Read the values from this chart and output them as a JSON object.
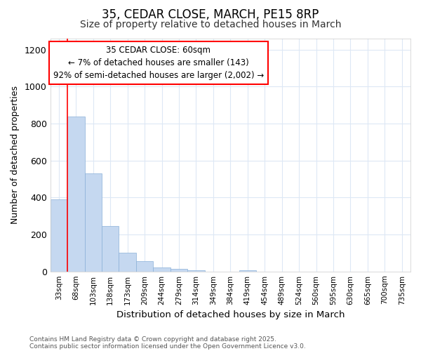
{
  "title1": "35, CEDAR CLOSE, MARCH, PE15 8RP",
  "title2": "Size of property relative to detached houses in March",
  "xlabel": "Distribution of detached houses by size in March",
  "ylabel": "Number of detached properties",
  "categories": [
    "33sqm",
    "68sqm",
    "103sqm",
    "138sqm",
    "173sqm",
    "209sqm",
    "244sqm",
    "279sqm",
    "314sqm",
    "349sqm",
    "384sqm",
    "419sqm",
    "454sqm",
    "489sqm",
    "524sqm",
    "560sqm",
    "595sqm",
    "630sqm",
    "665sqm",
    "700sqm",
    "735sqm"
  ],
  "values": [
    390,
    840,
    530,
    245,
    100,
    55,
    20,
    15,
    5,
    0,
    0,
    5,
    0,
    0,
    0,
    0,
    0,
    0,
    0,
    0,
    0
  ],
  "bar_color": "#c5d8f0",
  "bar_edge_color": "#8ab0d8",
  "ylim": [
    0,
    1260
  ],
  "yticks": [
    0,
    200,
    400,
    600,
    800,
    1000,
    1200
  ],
  "red_line_x": 0.5,
  "annotation_title": "35 CEDAR CLOSE: 60sqm",
  "annotation_line2": "← 7% of detached houses are smaller (143)",
  "annotation_line3": "92% of semi-detached houses are larger (2,002) →",
  "footer1": "Contains HM Land Registry data © Crown copyright and database right 2025.",
  "footer2": "Contains public sector information licensed under the Open Government Licence v3.0.",
  "bg_color": "#ffffff",
  "grid_color": "#dde8f5",
  "title_fontsize": 12,
  "subtitle_fontsize": 10
}
